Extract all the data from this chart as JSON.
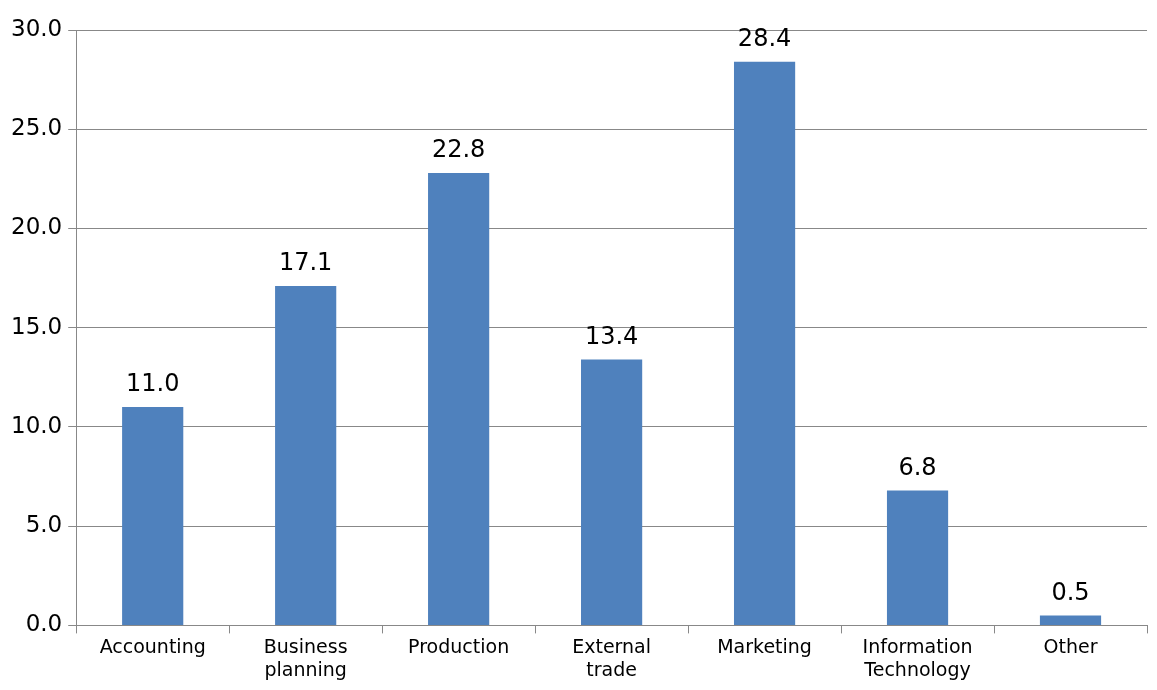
{
  "chart_data": {
    "type": "bar",
    "categories": [
      "Accounting",
      "Business planning",
      "Production",
      "External trade",
      "Marketing",
      "Information Technology",
      "Other"
    ],
    "values": [
      11.0,
      17.1,
      22.8,
      13.4,
      28.4,
      6.8,
      0.5
    ],
    "value_labels": [
      "11.0",
      "17.1",
      "22.8",
      "13.4",
      "28.4",
      "6.8",
      "0.5"
    ],
    "color": "#4f81bd",
    "ylim": [
      0,
      30
    ],
    "yticks": [
      {
        "value": 0,
        "label": "0.0"
      },
      {
        "value": 5,
        "label": "5.0"
      },
      {
        "value": 10,
        "label": "10.0"
      },
      {
        "value": 15,
        "label": "15.0"
      },
      {
        "value": 20,
        "label": "20.0"
      },
      {
        "value": 25,
        "label": "25.0"
      },
      {
        "value": 30,
        "label": "30.0"
      }
    ],
    "grid": "y",
    "legend": false
  }
}
